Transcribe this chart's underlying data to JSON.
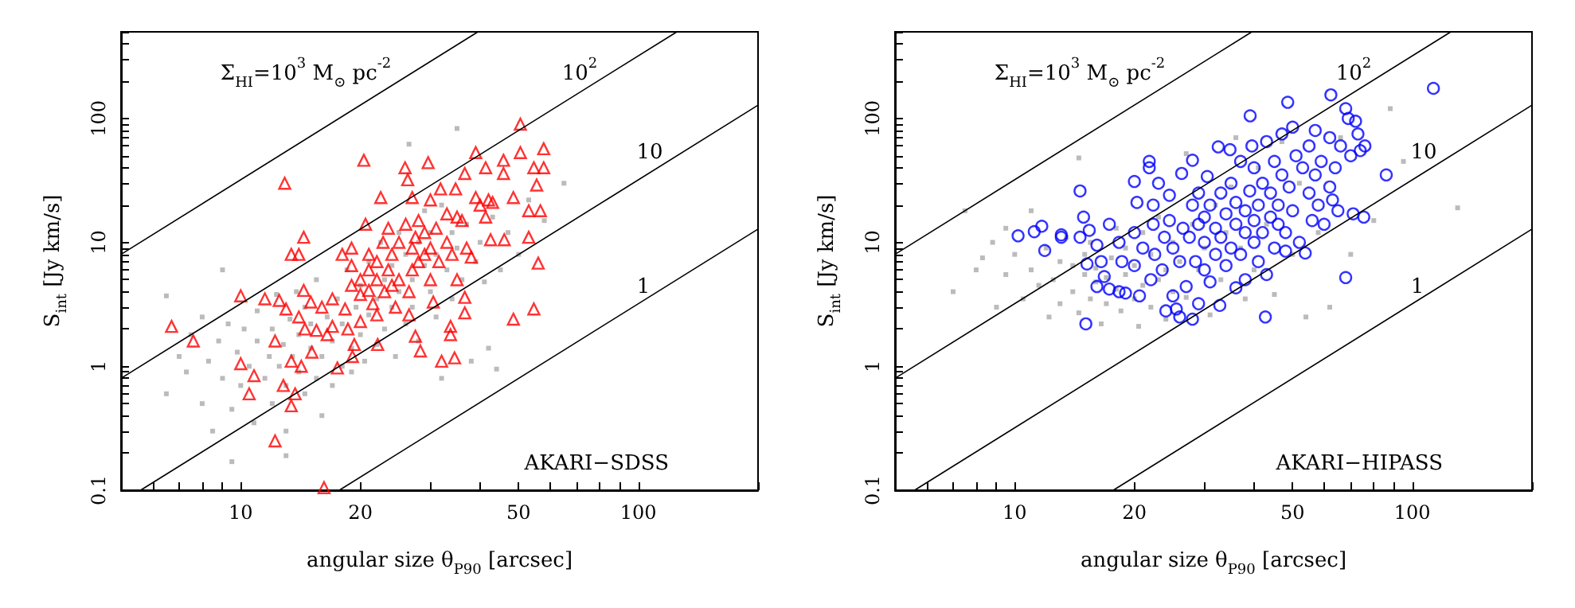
{
  "chart_data": [
    {
      "type": "scatter",
      "xlabel": "angular size θ$_{P90}$ [arcsec]",
      "ylabel": "S$_{int}$ [Jy km/s]",
      "log": "xy",
      "grid": false,
      "xlim": [
        5,
        200
      ],
      "ylim": [
        0.1,
        500
      ],
      "xticks": [
        {
          "value": 5,
          "label": null
        },
        {
          "value": 6,
          "label": null
        },
        {
          "value": 7,
          "label": null
        },
        {
          "value": 8,
          "label": null
        },
        {
          "value": 9,
          "label": null
        },
        10,
        20,
        {
          "value": 30,
          "label": null
        },
        {
          "value": 40,
          "label": null
        },
        50,
        {
          "value": 60,
          "label": null
        },
        {
          "value": 70,
          "label": null
        },
        {
          "value": 80,
          "label": null
        },
        {
          "value": 90,
          "label": null
        },
        100,
        {
          "value": 200,
          "label": null
        }
      ],
      "yticks": [
        0.1,
        {
          "value": 0.2,
          "label": null
        },
        {
          "value": 0.3,
          "label": null
        },
        {
          "value": 0.4,
          "label": null
        },
        {
          "value": 0.5,
          "label": null
        },
        {
          "value": 0.6,
          "label": null
        },
        {
          "value": 0.7,
          "label": null
        },
        {
          "value": 0.8,
          "label": null
        },
        {
          "value": 0.9,
          "label": null
        },
        1,
        {
          "value": 2,
          "label": null
        },
        {
          "value": 3,
          "label": null
        },
        {
          "value": 4,
          "label": null
        },
        {
          "value": 5,
          "label": null
        },
        {
          "value": 6,
          "label": null
        },
        {
          "value": 7,
          "label": null
        },
        {
          "value": 8,
          "label": null
        },
        {
          "value": 9,
          "label": null
        },
        10,
        {
          "value": 20,
          "label": null
        },
        {
          "value": 30,
          "label": null
        },
        {
          "value": 40,
          "label": null
        },
        {
          "value": 50,
          "label": null
        },
        {
          "value": 60,
          "label": null
        },
        {
          "value": 70,
          "label": null
        },
        {
          "value": 80,
          "label": null
        },
        {
          "value": 90,
          "label": null
        },
        100,
        {
          "value": 200,
          "label": null
        },
        {
          "value": 300,
          "label": null
        },
        {
          "value": 400,
          "label": null
        },
        {
          "value": 500,
          "label": null
        }
      ],
      "series": [
        {
          "color": "#aaaaaa",
          "marker": "square",
          "x": [
            6.5,
            6.5,
            7,
            7.3,
            7.5,
            8,
            8,
            8.3,
            8.5,
            8.8,
            9,
            9,
            9.3,
            9.5,
            9.8,
            10,
            10.2,
            10.5,
            10.8,
            11,
            11,
            11.5,
            11.8,
            12,
            12,
            12.3,
            12.5,
            12.8,
            13,
            13,
            13.3,
            13.5,
            13.8,
            14,
            14,
            14.5,
            14.5,
            15,
            15,
            15.5,
            15.5,
            16,
            16,
            16.5,
            17,
            17,
            17.5,
            18,
            18,
            18.5,
            19,
            19,
            19.5,
            20,
            20,
            20.5,
            21,
            21,
            22,
            22,
            22.5,
            23,
            23,
            24,
            24,
            24.5,
            25,
            25,
            26,
            26,
            26.5,
            27,
            27,
            28,
            28,
            29,
            29,
            30,
            30,
            31,
            31,
            32,
            32,
            33,
            34,
            34,
            35,
            35,
            36,
            37,
            38,
            39,
            40,
            41,
            42,
            43,
            44,
            45,
            47,
            50,
            53,
            58,
            65,
            9.5,
            13
          ],
          "values": [
            0.6,
            3.7,
            1.2,
            0.9,
            1.8,
            0.5,
            2.5,
            1.1,
            0.3,
            1.6,
            0.8,
            6,
            2.2,
            0.45,
            1.3,
            0.7,
            2,
            1,
            0.35,
            1.6,
            2.8,
            0.8,
            1.2,
            0.5,
            2,
            3.8,
            1,
            1.5,
            0.7,
            0.3,
            2.4,
            1.2,
            4,
            0.9,
            1.8,
            0.6,
            3,
            1.4,
            2.2,
            0.8,
            5,
            1.2,
            0.4,
            2.5,
            1.6,
            0.7,
            3.5,
            1,
            2.2,
            6,
            1.4,
            0.9,
            3,
            4.5,
            1.8,
            1.1,
            7,
            2.6,
            3.5,
            1.5,
            10,
            5,
            2,
            6.5,
            3,
            1.2,
            12,
            4,
            8,
            2.2,
            62,
            5,
            3,
            10,
            1.6,
            6.5,
            18,
            4,
            12,
            8,
            2.5,
            20,
            0.8,
            6,
            12,
            3.5,
            83,
            9,
            5,
            14,
            1.1,
            7,
            10,
            4.8,
            1.4,
            16,
            0.95,
            6,
            12,
            8,
            22,
            15,
            30,
            0.17,
            0.19
          ]
        },
        {
          "color": "#ff0000",
          "marker": "triangle",
          "x": [
            6.7,
            7.6,
            10,
            10,
            10.5,
            10.8,
            11.5,
            12.2,
            12.2,
            12.5,
            12.8,
            12.9,
            13,
            13.4,
            13.4,
            13.4,
            13.7,
            14,
            14,
            14.2,
            14.4,
            14.4,
            14.5,
            15,
            15.1,
            16.2,
            15.5,
            16,
            16.5,
            17,
            17,
            17.5,
            18,
            18.3,
            18.6,
            19,
            19,
            19,
            19.1,
            19.3,
            20,
            20,
            20,
            20.4,
            20.6,
            21,
            21,
            21,
            21.5,
            22,
            22,
            22,
            22.1,
            22.5,
            22.8,
            23,
            23.5,
            23.5,
            24,
            24,
            24.5,
            25,
            25,
            25.9,
            26,
            26.3,
            26.5,
            26.5,
            27,
            27,
            27,
            27.5,
            27.5,
            28,
            28,
            28.3,
            29,
            29,
            29.6,
            30,
            30,
            30,
            30.5,
            31,
            31.8,
            31.5,
            32,
            33,
            33,
            33.7,
            33.7,
            34,
            34.5,
            34.7,
            35,
            35,
            36,
            36.6,
            36.6,
            36.6,
            37,
            38,
            39,
            39,
            40,
            41.3,
            41.3,
            42,
            42.5,
            43,
            45.8,
            45.8,
            46,
            48.5,
            48.5,
            50.5,
            50.5,
            53,
            53,
            54.6,
            54.6,
            55.5,
            56.7,
            56,
            57.8,
            57.8
          ],
          "values": [
            2.1,
            1.6,
            3.7,
            1.05,
            0.6,
            0.84,
            3.5,
            1.6,
            0.25,
            3.4,
            0.7,
            30,
            2.9,
            8,
            1.1,
            0.48,
            0.6,
            8,
            2.5,
            1.0,
            11,
            4.1,
            2,
            3.3,
            1.3,
            0.105,
            1.95,
            3.0,
            1.8,
            3.5,
            2.1,
            0.97,
            8,
            2.9,
            2.0,
            9,
            6.5,
            4.5,
            1.2,
            1.5,
            5,
            3.8,
            2.3,
            46,
            14,
            8,
            6,
            4.1,
            3.2,
            7,
            5,
            2.6,
            1.5,
            23,
            10,
            4,
            13,
            6,
            8,
            4.5,
            3,
            10,
            5,
            40,
            14,
            32,
            4,
            2.6,
            23,
            9,
            6,
            11,
            1.75,
            15,
            7,
            1.33,
            12,
            8,
            44,
            22,
            9,
            5,
            3.3,
            13,
            27,
            7,
            1.1,
            17,
            10,
            1.8,
            2.1,
            8,
            1.17,
            27,
            16,
            5,
            15,
            36,
            3.6,
            2.7,
            9,
            7.6,
            53,
            23,
            20,
            40,
            16,
            22,
            10.5,
            21,
            46,
            36,
            10.5,
            23,
            2.4,
            90,
            53,
            18,
            11,
            40,
            2.9,
            29,
            18,
            6.8,
            57,
            40
          ]
        },
        {
          "type": "line",
          "color": "#000000",
          "marker": "none",
          "line_style": "solid",
          "x": [
            5,
            39.5
          ],
          "values": [
            8,
            500
          ]
        },
        {
          "type": "line",
          "color": "#000000",
          "marker": "none",
          "line_style": "solid",
          "x": [
            5,
            125
          ],
          "values": [
            0.8,
            500
          ]
        },
        {
          "type": "line",
          "color": "#000000",
          "marker": "none",
          "line_style": "solid",
          "x": [
            5.6,
            200
          ],
          "values": [
            0.1,
            128
          ]
        },
        {
          "type": "line",
          "color": "#000000",
          "marker": "none",
          "line_style": "solid",
          "x": [
            17.7,
            200
          ],
          "values": [
            0.1,
            12.8
          ]
        }
      ],
      "annotations": [
        "Σ$_{HI}$=10$^{3}$ M$_{⊙}$ pc$^{-2}$",
        "10$^{2}$",
        "10",
        "1",
        "AKARI−SDSS"
      ]
    },
    {
      "type": "scatter",
      "xlabel": "angular size θ$_{P90}$ [arcsec]",
      "ylabel": "S$_{int}$ [Jy km/s]",
      "log": "xy",
      "grid": false,
      "xlim": [
        5,
        200
      ],
      "ylim": [
        0.1,
        500
      ],
      "xticks": [
        {
          "value": 5,
          "label": null
        },
        {
          "value": 6,
          "label": null
        },
        {
          "value": 7,
          "label": null
        },
        {
          "value": 8,
          "label": null
        },
        {
          "value": 9,
          "label": null
        },
        10,
        20,
        {
          "value": 30,
          "label": null
        },
        {
          "value": 40,
          "label": null
        },
        50,
        {
          "value": 60,
          "label": null
        },
        {
          "value": 70,
          "label": null
        },
        {
          "value": 80,
          "label": null
        },
        {
          "value": 90,
          "label": null
        },
        100,
        {
          "value": 200,
          "label": null
        }
      ],
      "yticks": [
        0.1,
        {
          "value": 0.2,
          "label": null
        },
        {
          "value": 0.3,
          "label": null
        },
        {
          "value": 0.4,
          "label": null
        },
        {
          "value": 0.5,
          "label": null
        },
        {
          "value": 0.6,
          "label": null
        },
        {
          "value": 0.7,
          "label": null
        },
        {
          "value": 0.8,
          "label": null
        },
        {
          "value": 0.9,
          "label": null
        },
        1,
        {
          "value": 2,
          "label": null
        },
        {
          "value": 3,
          "label": null
        },
        {
          "value": 4,
          "label": null
        },
        {
          "value": 5,
          "label": null
        },
        {
          "value": 6,
          "label": null
        },
        {
          "value": 7,
          "label": null
        },
        {
          "value": 8,
          "label": null
        },
        {
          "value": 9,
          "label": null
        },
        10,
        {
          "value": 20,
          "label": null
        },
        {
          "value": 30,
          "label": null
        },
        {
          "value": 40,
          "label": null
        },
        {
          "value": 50,
          "label": null
        },
        {
          "value": 60,
          "label": null
        },
        {
          "value": 70,
          "label": null
        },
        {
          "value": 80,
          "label": null
        },
        {
          "value": 90,
          "label": null
        },
        100,
        {
          "value": 200,
          "label": null
        },
        {
          "value": 300,
          "label": null
        },
        {
          "value": 400,
          "label": null
        },
        {
          "value": 500,
          "label": null
        }
      ],
      "series": [
        {
          "color": "#aaaaaa",
          "marker": "square",
          "x": [
            7,
            7.5,
            8,
            8.3,
            8.8,
            9,
            9.5,
            9.5,
            10,
            10.5,
            11,
            11,
            11.5,
            12,
            12.2,
            12.5,
            13,
            13,
            13.5,
            14,
            14,
            14.5,
            14.5,
            15,
            15,
            15.5,
            15.5,
            16,
            16,
            16.5,
            17,
            17,
            17.5,
            18,
            18,
            18.5,
            19,
            19,
            20,
            20,
            20.5,
            21,
            21,
            22,
            22,
            23,
            23,
            24,
            24,
            25,
            25,
            26,
            27,
            27,
            28,
            29,
            30,
            31,
            32,
            33,
            34,
            35,
            36,
            37,
            38,
            40,
            41,
            43,
            45,
            47,
            50,
            52,
            54,
            58,
            62,
            66,
            70,
            80,
            88,
            95,
            130
          ],
          "values": [
            4,
            18,
            6,
            7.5,
            10,
            3,
            13,
            5.5,
            8,
            3.5,
            6,
            18,
            4.5,
            9,
            2.5,
            5,
            7,
            3.2,
            11,
            4,
            6.5,
            48,
            2.7,
            5.5,
            8,
            3.5,
            10,
            4.8,
            6.2,
            2.2,
            5.2,
            3.2,
            7.5,
            4.2,
            13,
            2.8,
            5.5,
            9,
            3.5,
            6.5,
            2.1,
            4.5,
            12,
            3,
            8,
            5,
            16,
            2.4,
            6,
            4,
            10,
            7,
            52,
            3.6,
            14,
            6,
            9,
            2.6,
            20,
            5,
            12,
            28,
            70,
            9,
            3.5,
            6,
            40,
            14,
            3.8,
            65,
            8,
            30,
            2.5,
            12,
            3,
            70,
            8,
            15,
            120,
            45,
            19
          ]
        },
        {
          "color": "#0000ff",
          "marker": "circle",
          "x": [
            10.2,
            11.2,
            11.7,
            11.9,
            13.1,
            13.1,
            14.6,
            14.6,
            14.9,
            15.2,
            15.1,
            15.4,
            16.1,
            16.1,
            16.5,
            16.8,
            17.3,
            17.3,
            18.3,
            18.3,
            18.6,
            19,
            20,
            20,
            20,
            20.3,
            20.6,
            21,
            21.8,
            21.8,
            22,
            22.3,
            22.3,
            22.5,
            23,
            23.5,
            23.8,
            24,
            24.5,
            24.5,
            25,
            25,
            25.5,
            26,
            26,
            26.3,
            26.5,
            27,
            27.5,
            28,
            28,
            28,
            28.5,
            29,
            29,
            29,
            30,
            30,
            30,
            30.5,
            31,
            31,
            32,
            32,
            32.5,
            32.8,
            33,
            33,
            34,
            34,
            34.8,
            35,
            35,
            36,
            36,
            36,
            37,
            37,
            38,
            38,
            38,
            39,
            39.1,
            39.5,
            40,
            40,
            40,
            41,
            41,
            42,
            42,
            42.7,
            43,
            43,
            44,
            44,
            45,
            45,
            46,
            46,
            47,
            47,
            48,
            48.6,
            48,
            49,
            50,
            50,
            51,
            52,
            53,
            53.8,
            55,
            55,
            56,
            57,
            57,
            58,
            59,
            60,
            62,
            62.4,
            62,
            63,
            64,
            65,
            66,
            68,
            68,
            69,
            70,
            71,
            72,
            73,
            74,
            75.5,
            76,
            86,
            113
          ],
          "values": [
            11.3,
            12.2,
            13.5,
            8.6,
            11,
            11.5,
            26,
            11,
            16,
            6.7,
            2.2,
            12.5,
            4.4,
            9.5,
            7,
            5.3,
            14,
            4.2,
            4,
            10,
            7,
            3.9,
            31,
            12,
            6.5,
            21,
            3.7,
            9,
            45,
            40,
            5,
            20,
            14,
            8,
            30,
            6,
            11,
            2.8,
            24,
            15,
            9,
            3.7,
            2.9,
            2.5,
            7,
            36,
            13,
            4.4,
            11,
            46,
            20,
            2.4,
            7,
            14,
            3.2,
            25,
            6,
            10,
            16,
            34,
            20,
            4.8,
            8,
            13,
            59,
            3.1,
            25,
            11,
            17,
            6.5,
            56,
            9,
            30,
            14,
            4.3,
            21,
            8,
            45,
            12,
            18,
            5,
            26,
            105,
            60,
            10,
            15,
            40,
            7,
            20,
            12,
            30,
            2.5,
            5.5,
            65,
            16,
            25,
            9,
            45,
            14,
            20,
            75,
            35,
            8.5,
            135,
            12,
            28,
            85,
            18,
            50,
            10,
            40,
            8.2,
            25,
            60,
            15,
            80,
            35,
            20,
            45,
            14,
            28,
            155,
            70,
            22,
            40,
            18,
            60,
            120,
            5.2,
            100,
            50,
            17,
            95,
            75,
            55,
            16,
            60,
            35,
            175
          ]
        },
        {
          "type": "line",
          "color": "#000000",
          "marker": "none",
          "line_style": "solid",
          "x": [
            5,
            39.5
          ],
          "values": [
            8,
            500
          ]
        },
        {
          "type": "line",
          "color": "#000000",
          "marker": "none",
          "line_style": "solid",
          "x": [
            5,
            125
          ],
          "values": [
            0.8,
            500
          ]
        },
        {
          "type": "line",
          "color": "#000000",
          "marker": "none",
          "line_style": "solid",
          "x": [
            5.6,
            200
          ],
          "values": [
            0.1,
            128
          ]
        },
        {
          "type": "line",
          "color": "#000000",
          "marker": "none",
          "line_style": "solid",
          "x": [
            17.7,
            200
          ],
          "values": [
            0.1,
            12.8
          ]
        }
      ],
      "annotations": [
        "Σ$_{HI}$=10$^{3}$ M$_{⊙}$ pc$^{-2}$",
        "10$^{2}$",
        "10",
        "1",
        "AKARI−HIPASS"
      ]
    }
  ]
}
